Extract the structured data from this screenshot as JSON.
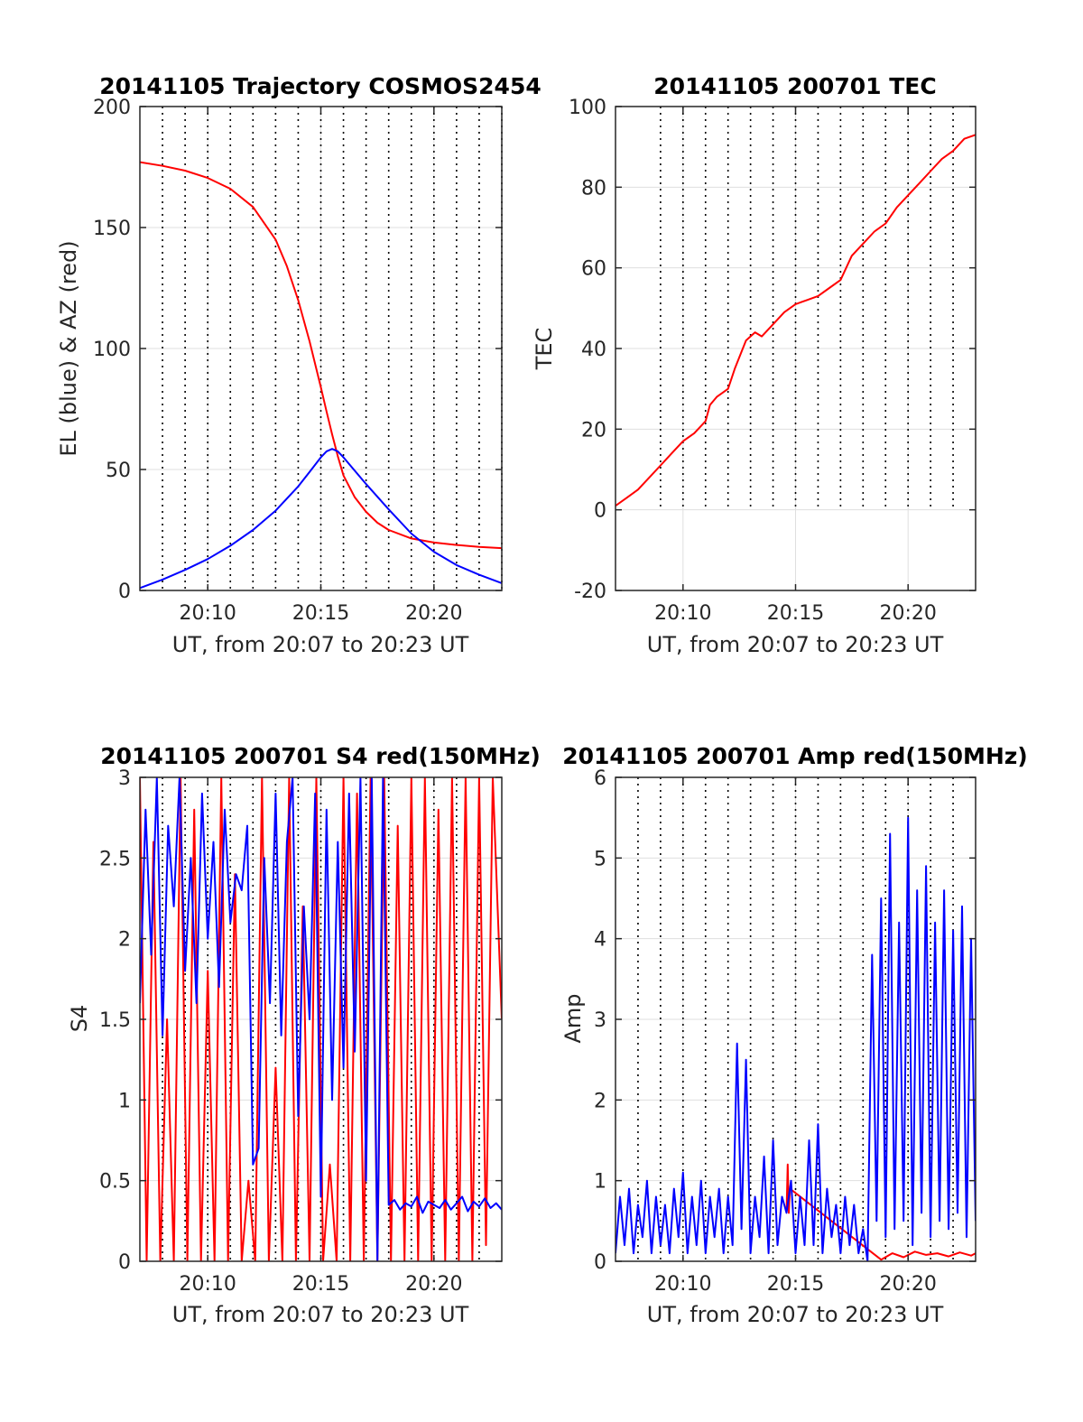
{
  "figure": {
    "background": "#ffffff",
    "axis_color": "#262626",
    "grid_color": "#dfdfdf"
  },
  "chart_data": [
    {
      "id": "traj",
      "type": "line",
      "title": "20141105 Trajectory COSMOS2454",
      "xlabel": "UT, from 20:07 to 20:23 UT",
      "ylabel": "EL (blue) & AZ (red)",
      "xlim": [
        0,
        16
      ],
      "ylim": [
        0,
        200
      ],
      "x_ticks": [
        3,
        8,
        13
      ],
      "x_tick_labels": [
        "20:10",
        "20:15",
        "20:20"
      ],
      "y_ticks": [
        0,
        50,
        100,
        150,
        200
      ],
      "y_tick_labels": [
        "0",
        "50",
        "100",
        "150",
        "200"
      ],
      "dotted_vlines": [
        1,
        2,
        3,
        4,
        5,
        6,
        7,
        8,
        9,
        10,
        11,
        12,
        13,
        14,
        15,
        16
      ],
      "grid": true,
      "series": [
        {
          "color": "#ff0000",
          "x": [
            0,
            1,
            2,
            3,
            4,
            5,
            6,
            6.5,
            7,
            7.5,
            8,
            8.25,
            8.5,
            8.75,
            9,
            9.5,
            10,
            10.5,
            11,
            12,
            13,
            14,
            15,
            16
          ],
          "y": [
            177,
            175.5,
            173.5,
            170.5,
            166,
            158.5,
            145,
            134,
            120,
            103,
            84,
            74,
            64.5,
            55.5,
            47.5,
            38.5,
            32.5,
            28,
            25,
            21.5,
            19.8,
            18.8,
            18,
            17.5
          ]
        },
        {
          "color": "#0000ff",
          "x": [
            0,
            1,
            2,
            3,
            4,
            5,
            6,
            7,
            7.5,
            8,
            8.25,
            8.5,
            8.75,
            9,
            10,
            11,
            12,
            13,
            14,
            15,
            16
          ],
          "y": [
            1,
            4.5,
            8.5,
            13,
            18.5,
            25,
            33,
            43,
            49,
            55,
            57.5,
            58.5,
            57.5,
            55,
            44,
            33.5,
            23.5,
            16,
            10.5,
            6.5,
            3
          ]
        }
      ]
    },
    {
      "id": "tec",
      "type": "line",
      "title": "20141105 200701 TEC",
      "xlabel": "UT, from 20:07 to 20:23 UT",
      "ylabel": "TEC",
      "xlim": [
        0,
        16
      ],
      "ylim": [
        -20,
        100
      ],
      "x_ticks": [
        3,
        8,
        13
      ],
      "x_tick_labels": [
        "20:10",
        "20:15",
        "20:20"
      ],
      "y_ticks": [
        -20,
        0,
        20,
        40,
        60,
        80,
        100
      ],
      "y_tick_labels": [
        "-20",
        "0",
        "20",
        "40",
        "60",
        "80",
        "100"
      ],
      "dotted_vlines": [
        2,
        3,
        4,
        5,
        6,
        7,
        8,
        9,
        10,
        11,
        12,
        13,
        14,
        15
      ],
      "dotted_ymin": 0,
      "grid": true,
      "series": [
        {
          "color": "#ff0000",
          "x": [
            0,
            0.5,
            1,
            1.5,
            2,
            2.5,
            3,
            3.5,
            4,
            4.2,
            4.5,
            5,
            5.3,
            5.8,
            6.2,
            6.5,
            7,
            7.5,
            8,
            8.5,
            9,
            9.5,
            10,
            10.5,
            11,
            11.5,
            12,
            12.5,
            13,
            13.5,
            14,
            14.5,
            15,
            15.5,
            16
          ],
          "y": [
            1,
            3,
            5,
            8,
            11,
            14,
            17,
            19,
            22,
            26,
            28,
            30,
            35,
            42,
            44,
            43,
            46,
            49,
            51,
            52,
            53,
            55,
            57,
            63,
            66,
            69,
            71,
            75,
            78,
            81,
            84,
            87,
            89,
            92,
            93
          ]
        }
      ]
    },
    {
      "id": "s4",
      "type": "line",
      "title": "20141105 200701 S4 red(150MHz)",
      "xlabel": "UT, from 20:07 to 20:23 UT",
      "ylabel": "S4",
      "xlim": [
        0,
        16
      ],
      "ylim": [
        0,
        3
      ],
      "x_ticks": [
        3,
        8,
        13
      ],
      "x_tick_labels": [
        "20:10",
        "20:15",
        "20:20"
      ],
      "y_ticks": [
        0,
        0.5,
        1,
        1.5,
        2,
        2.5,
        3
      ],
      "y_tick_labels": [
        "0",
        "0.5",
        "1",
        "1.5",
        "2",
        "2.5",
        "3"
      ],
      "dotted_vlines": [
        1,
        2,
        3,
        4,
        5,
        6,
        7,
        8,
        9,
        10,
        11,
        12,
        13,
        14,
        15
      ],
      "grid": true,
      "series": [
        {
          "color": "#ff0000",
          "x": [
            0,
            0.3,
            0.6,
            0.9,
            1.2,
            1.5,
            1.8,
            2.1,
            2.4,
            2.7,
            3,
            3.3,
            3.6,
            3.9,
            4.2,
            4.5,
            4.8,
            5.1,
            5.4,
            5.7,
            6,
            6.3,
            6.6,
            6.9,
            7.2,
            7.5,
            7.8,
            8.1,
            8.4,
            8.7,
            9,
            9.3,
            9.6,
            9.9,
            10.2,
            10.5,
            10.8,
            11.1,
            11.4,
            11.7,
            12,
            12.3,
            12.6,
            12.9,
            13.2,
            13.5,
            13.8,
            14.1,
            14.4,
            14.7,
            15,
            15.3,
            15.6,
            16
          ],
          "y": [
            3,
            0,
            2.6,
            0,
            1.5,
            0,
            3,
            0,
            2.8,
            0,
            1.8,
            0,
            3,
            0,
            2.4,
            0,
            0.5,
            0,
            3,
            0,
            1.2,
            0,
            3,
            0,
            2.2,
            0,
            3,
            0,
            0.6,
            0,
            3,
            0,
            2.9,
            0,
            3,
            0,
            3,
            0,
            2.7,
            0,
            3,
            0,
            3,
            0,
            2.8,
            0,
            3,
            0,
            3,
            0,
            3,
            0.1,
            3,
            1.5
          ]
        },
        {
          "color": "#0000ff",
          "x": [
            0,
            0.25,
            0.5,
            0.75,
            1,
            1.25,
            1.5,
            1.75,
            2,
            2.25,
            2.5,
            2.75,
            3,
            3.25,
            3.5,
            3.75,
            4,
            4.25,
            4.5,
            4.75,
            5,
            5.25,
            5.5,
            5.75,
            6,
            6.25,
            6.5,
            6.75,
            7,
            7.25,
            7.5,
            7.75,
            8,
            8.25,
            8.5,
            8.75,
            9,
            9.25,
            9.5,
            9.75,
            10,
            10.25,
            10.5,
            10.75,
            11,
            11.25,
            11.5,
            11.75,
            12,
            12.25,
            12.5,
            12.75,
            13,
            13.25,
            13.5,
            13.75,
            14,
            14.25,
            14.5,
            14.75,
            15,
            15.25,
            15.5,
            15.75,
            16
          ],
          "y": [
            1.6,
            2.8,
            1.9,
            3,
            1.4,
            2.7,
            2.2,
            3,
            1.8,
            2.5,
            1.6,
            2.9,
            2,
            2.6,
            1.7,
            2.8,
            2.1,
            2.4,
            2.3,
            2.7,
            0.6,
            0.7,
            2.5,
            1.6,
            2.9,
            1.4,
            2.6,
            3,
            0.9,
            2.2,
            1.5,
            2.9,
            0.4,
            2.8,
            1,
            2.6,
            1.2,
            2.9,
            1.3,
            3,
            0.5,
            3,
            0,
            3,
            0.35,
            0.38,
            0.32,
            0.36,
            0.34,
            0.4,
            0.3,
            0.37,
            0.35,
            0.33,
            0.38,
            0.32,
            0.36,
            0.4,
            0.31,
            0.37,
            0.34,
            0.39,
            0.33,
            0.36,
            0.32
          ]
        }
      ]
    },
    {
      "id": "amp",
      "type": "line",
      "title": "20141105 200701 Amp red(150MHz)",
      "xlabel": "UT, from 20:07 to 20:23 UT",
      "ylabel": "Amp",
      "xlim": [
        0,
        16
      ],
      "ylim": [
        0,
        6
      ],
      "x_ticks": [
        3,
        8,
        13
      ],
      "x_tick_labels": [
        "20:10",
        "20:15",
        "20:20"
      ],
      "y_ticks": [
        0,
        1,
        2,
        3,
        4,
        5,
        6
      ],
      "y_tick_labels": [
        "0",
        "1",
        "2",
        "3",
        "4",
        "5",
        "6"
      ],
      "dotted_vlines": [
        1,
        2,
        3,
        4,
        5,
        6,
        7,
        8,
        9,
        10,
        11,
        12,
        13,
        14,
        15
      ],
      "grid": true,
      "series": [
        {
          "color": "#ff0000",
          "x": [
            7.6,
            7.65,
            7.7,
            7.75,
            11.8,
            12.3,
            12.8,
            13.3,
            13.8,
            14.3,
            14.8,
            15.3,
            15.8,
            16
          ],
          "y": [
            0.6,
            1.2,
            0.6,
            0.9,
            0.02,
            0.1,
            0.05,
            0.12,
            0.08,
            0.1,
            0.06,
            0.11,
            0.07,
            0.1
          ]
        },
        {
          "color": "#0000ff",
          "x": [
            0,
            0.2,
            0.4,
            0.6,
            0.8,
            1,
            1.2,
            1.4,
            1.6,
            1.8,
            2,
            2.2,
            2.4,
            2.6,
            2.8,
            3,
            3.2,
            3.4,
            3.6,
            3.8,
            4,
            4.2,
            4.4,
            4.6,
            4.8,
            5,
            5.2,
            5.4,
            5.6,
            5.8,
            6,
            6.2,
            6.4,
            6.6,
            6.8,
            7,
            7.2,
            7.4,
            7.6,
            7.8,
            8,
            8.2,
            8.4,
            8.6,
            8.8,
            9,
            9.2,
            9.4,
            9.6,
            9.8,
            10,
            10.2,
            10.4,
            10.6,
            10.8,
            11,
            11.2,
            11.4,
            11.6,
            11.8,
            12,
            12.2,
            12.4,
            12.6,
            12.8,
            13,
            13.2,
            13.4,
            13.6,
            13.8,
            14,
            14.2,
            14.4,
            14.6,
            14.8,
            15,
            15.2,
            15.4,
            15.6,
            15.8,
            16
          ],
          "y": [
            0.1,
            0.8,
            0.2,
            0.9,
            0.1,
            0.7,
            0.3,
            1,
            0.1,
            0.8,
            0.2,
            0.7,
            0.1,
            0.9,
            0.3,
            1.1,
            0.1,
            0.8,
            0.2,
            1,
            0.1,
            0.8,
            0.3,
            0.9,
            0.1,
            0.8,
            0.2,
            2.7,
            0.4,
            2.5,
            0.1,
            0.8,
            0.3,
            1.3,
            0.1,
            1.5,
            0.2,
            0.8,
            0.6,
            1,
            0.1,
            0.8,
            0.2,
            1.5,
            0.2,
            1.7,
            0.1,
            0.9,
            0.3,
            0.7,
            0.1,
            0.8,
            0.2,
            0.7,
            0.1,
            0.4,
            0,
            3.8,
            0.5,
            4.5,
            0.3,
            5.3,
            0.4,
            4.2,
            0.5,
            5.5,
            0.2,
            4.6,
            0.6,
            4.9,
            0.3,
            4.2,
            0.5,
            4.6,
            0.4,
            4.1,
            0.6,
            4.4,
            0.3,
            4,
            0.5
          ]
        }
      ]
    }
  ]
}
